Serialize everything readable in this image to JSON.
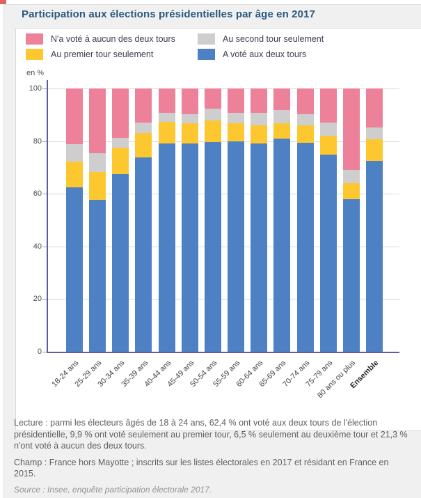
{
  "page": {
    "title": "Participation aux élections présidentielles par âge en 2017"
  },
  "legend": {
    "items": [
      {
        "label": "N'a voté à aucun des deux tours",
        "color": "#ec8199"
      },
      {
        "label": "Au second tour seulement",
        "color": "#cecece"
      },
      {
        "label": "Au premier tour seulement",
        "color": "#fdc72f"
      },
      {
        "label": "A voté aux deux tours",
        "color": "#4e81c4"
      }
    ]
  },
  "chart_data": {
    "type": "bar",
    "stacked": true,
    "title": "Participation aux élections présidentielles par âge en 2017",
    "ylabel": "en %",
    "xlabel": "",
    "ylim": [
      0,
      100
    ],
    "y_ticks": [
      0,
      20,
      40,
      60,
      80,
      100
    ],
    "grid": true,
    "legend_position": "top",
    "x_tick_rotation": -45,
    "categories": [
      "18-24 ans",
      "25-29 ans",
      "30-34 ans",
      "35-39 ans",
      "40-44 ans",
      "45-49 ans",
      "50-54 ans",
      "55-59 ans",
      "60-64 ans",
      "65-69 ans",
      "70-74 ans",
      "75-79 ans",
      "80 ans ou plus",
      "Ensemble"
    ],
    "bold_category": "Ensemble",
    "stack_order_bottom_to_top": [
      "A voté aux deux tours",
      "Au premier tour seulement",
      "Au second tour seulement",
      "N'a voté à aucun des deux tours"
    ],
    "series": [
      {
        "name": "A voté aux deux tours",
        "color": "#4e81c4",
        "values": [
          62.4,
          57.6,
          67.4,
          73.8,
          79.2,
          79.0,
          79.5,
          80.0,
          79.2,
          81.0,
          79.4,
          74.8,
          58.0,
          72.5
        ]
      },
      {
        "name": "Au premier tour seulement",
        "color": "#fdc72f",
        "values": [
          9.9,
          10.6,
          10.0,
          9.2,
          8.1,
          7.8,
          8.2,
          6.8,
          6.8,
          5.8,
          6.5,
          7.2,
          6.0,
          8.2
        ]
      },
      {
        "name": "Au second tour seulement",
        "color": "#cecece",
        "values": [
          6.5,
          7.3,
          3.9,
          4.1,
          3.5,
          3.5,
          4.6,
          4.0,
          4.8,
          5.0,
          4.4,
          5.0,
          5.0,
          4.4
        ]
      },
      {
        "name": "N'a voté à aucun des deux tours",
        "color": "#ec8199",
        "values": [
          21.3,
          24.5,
          18.7,
          12.9,
          9.2,
          9.7,
          7.7,
          9.2,
          9.2,
          8.2,
          9.7,
          13.0,
          31.0,
          14.9
        ]
      }
    ]
  },
  "footer": {
    "lecture": "Lecture : parmi les électeurs âgés de 18 à 24 ans, 62,4 % ont voté aux deux tours de l'élection présidentielle, 9,9 % ont voté seulement au premier tour, 6,5 % seulement au deuxième tour et 21,3 % n'ont voté à aucun des deux tours.",
    "champ": "Champ : France hors Mayotte ; inscrits sur les listes électorales en 2017 et résidant en France en 2015.",
    "source": "Source : Insee, enquête participation électorale 2017."
  }
}
